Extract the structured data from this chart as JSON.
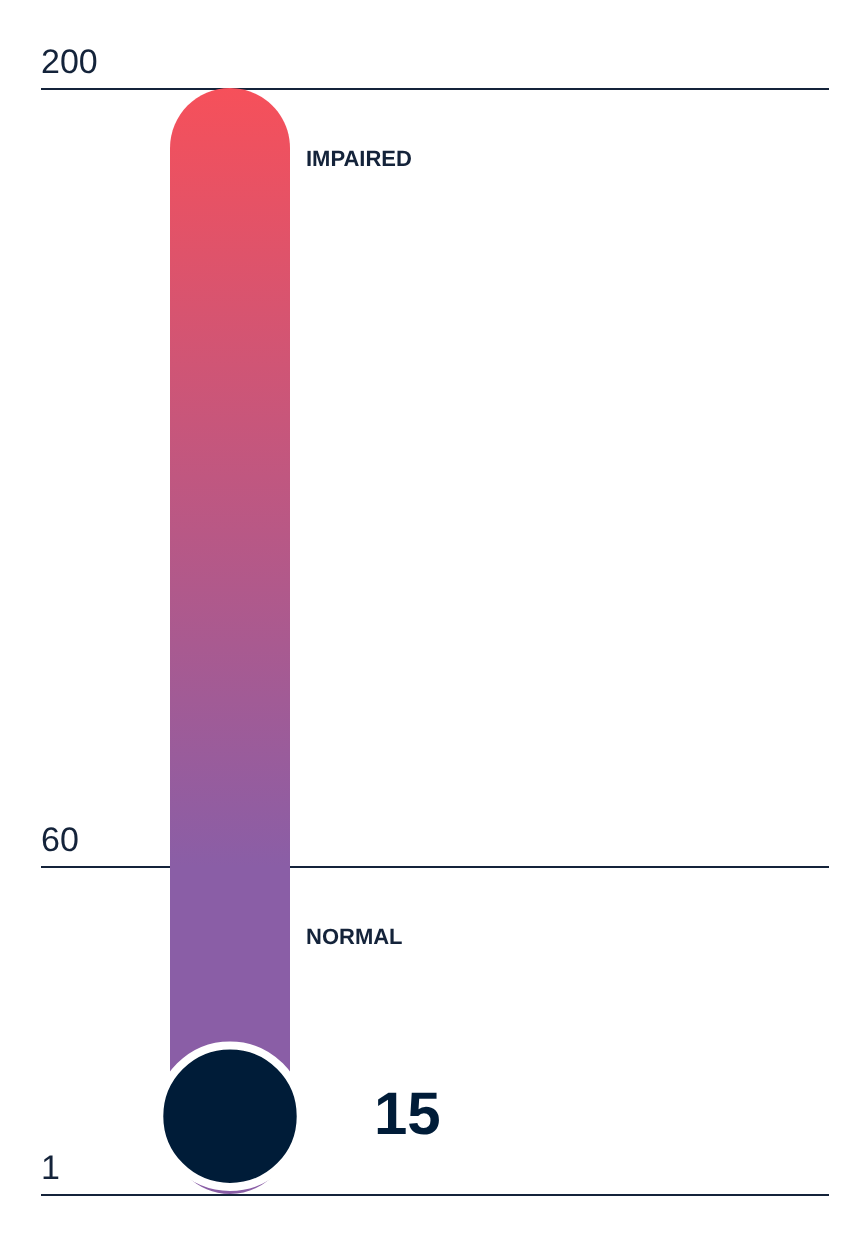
{
  "chart_data": {
    "type": "scatter",
    "values": [
      15
    ],
    "color": "#001c38",
    "data_labels": true,
    "ylim": [
      1,
      200
    ],
    "yticks": [
      1,
      60,
      200
    ],
    "grid": "y",
    "bands": [
      {
        "axis": "y",
        "from": 60,
        "to": 200,
        "label": "IMPAIRED",
        "color": "#f6505a"
      },
      {
        "axis": "y",
        "from": 1,
        "to": 60,
        "label": "NORMAL",
        "color": "#8a5ea6"
      }
    ]
  }
}
